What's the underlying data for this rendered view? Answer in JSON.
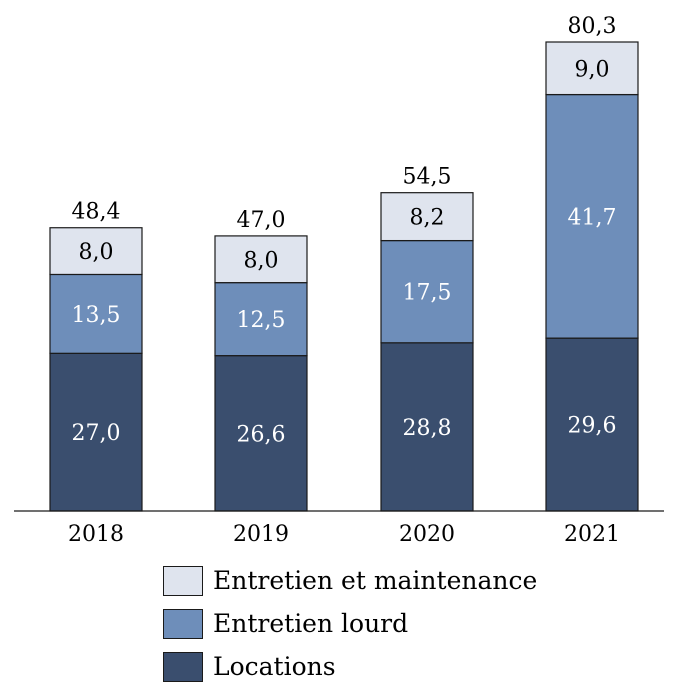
{
  "chart_data": {
    "type": "bar",
    "stacked": true,
    "categories": [
      "2018",
      "2019",
      "2020",
      "2021"
    ],
    "series": [
      {
        "name": "Locations",
        "values": [
          27.0,
          26.6,
          28.8,
          29.6
        ],
        "labels": [
          "27,0",
          "26,6",
          "28,8",
          "29,6"
        ],
        "color": "#3a4e6e"
      },
      {
        "name": "Entretien lourd",
        "values": [
          13.5,
          12.5,
          17.5,
          41.7
        ],
        "labels": [
          "13,5",
          "12,5",
          "17,5",
          "41,7"
        ],
        "color": "#6e8eba"
      },
      {
        "name": "Entretien et maintenance",
        "values": [
          8.0,
          8.0,
          8.2,
          9.0
        ],
        "labels": [
          "8,0",
          "8,0",
          "8,2",
          "9,0"
        ],
        "color": "#dfe4ee"
      }
    ],
    "totals": [
      48.4,
      47.0,
      54.5,
      80.3
    ],
    "total_labels": [
      "48,4",
      "47,0",
      "54,5",
      "80,3"
    ],
    "legend_order": [
      "Entretien et maintenance",
      "Entretien lourd",
      "Locations"
    ],
    "legend_position": "bottom",
    "grid": false,
    "ylim": [
      0,
      80.3
    ]
  }
}
